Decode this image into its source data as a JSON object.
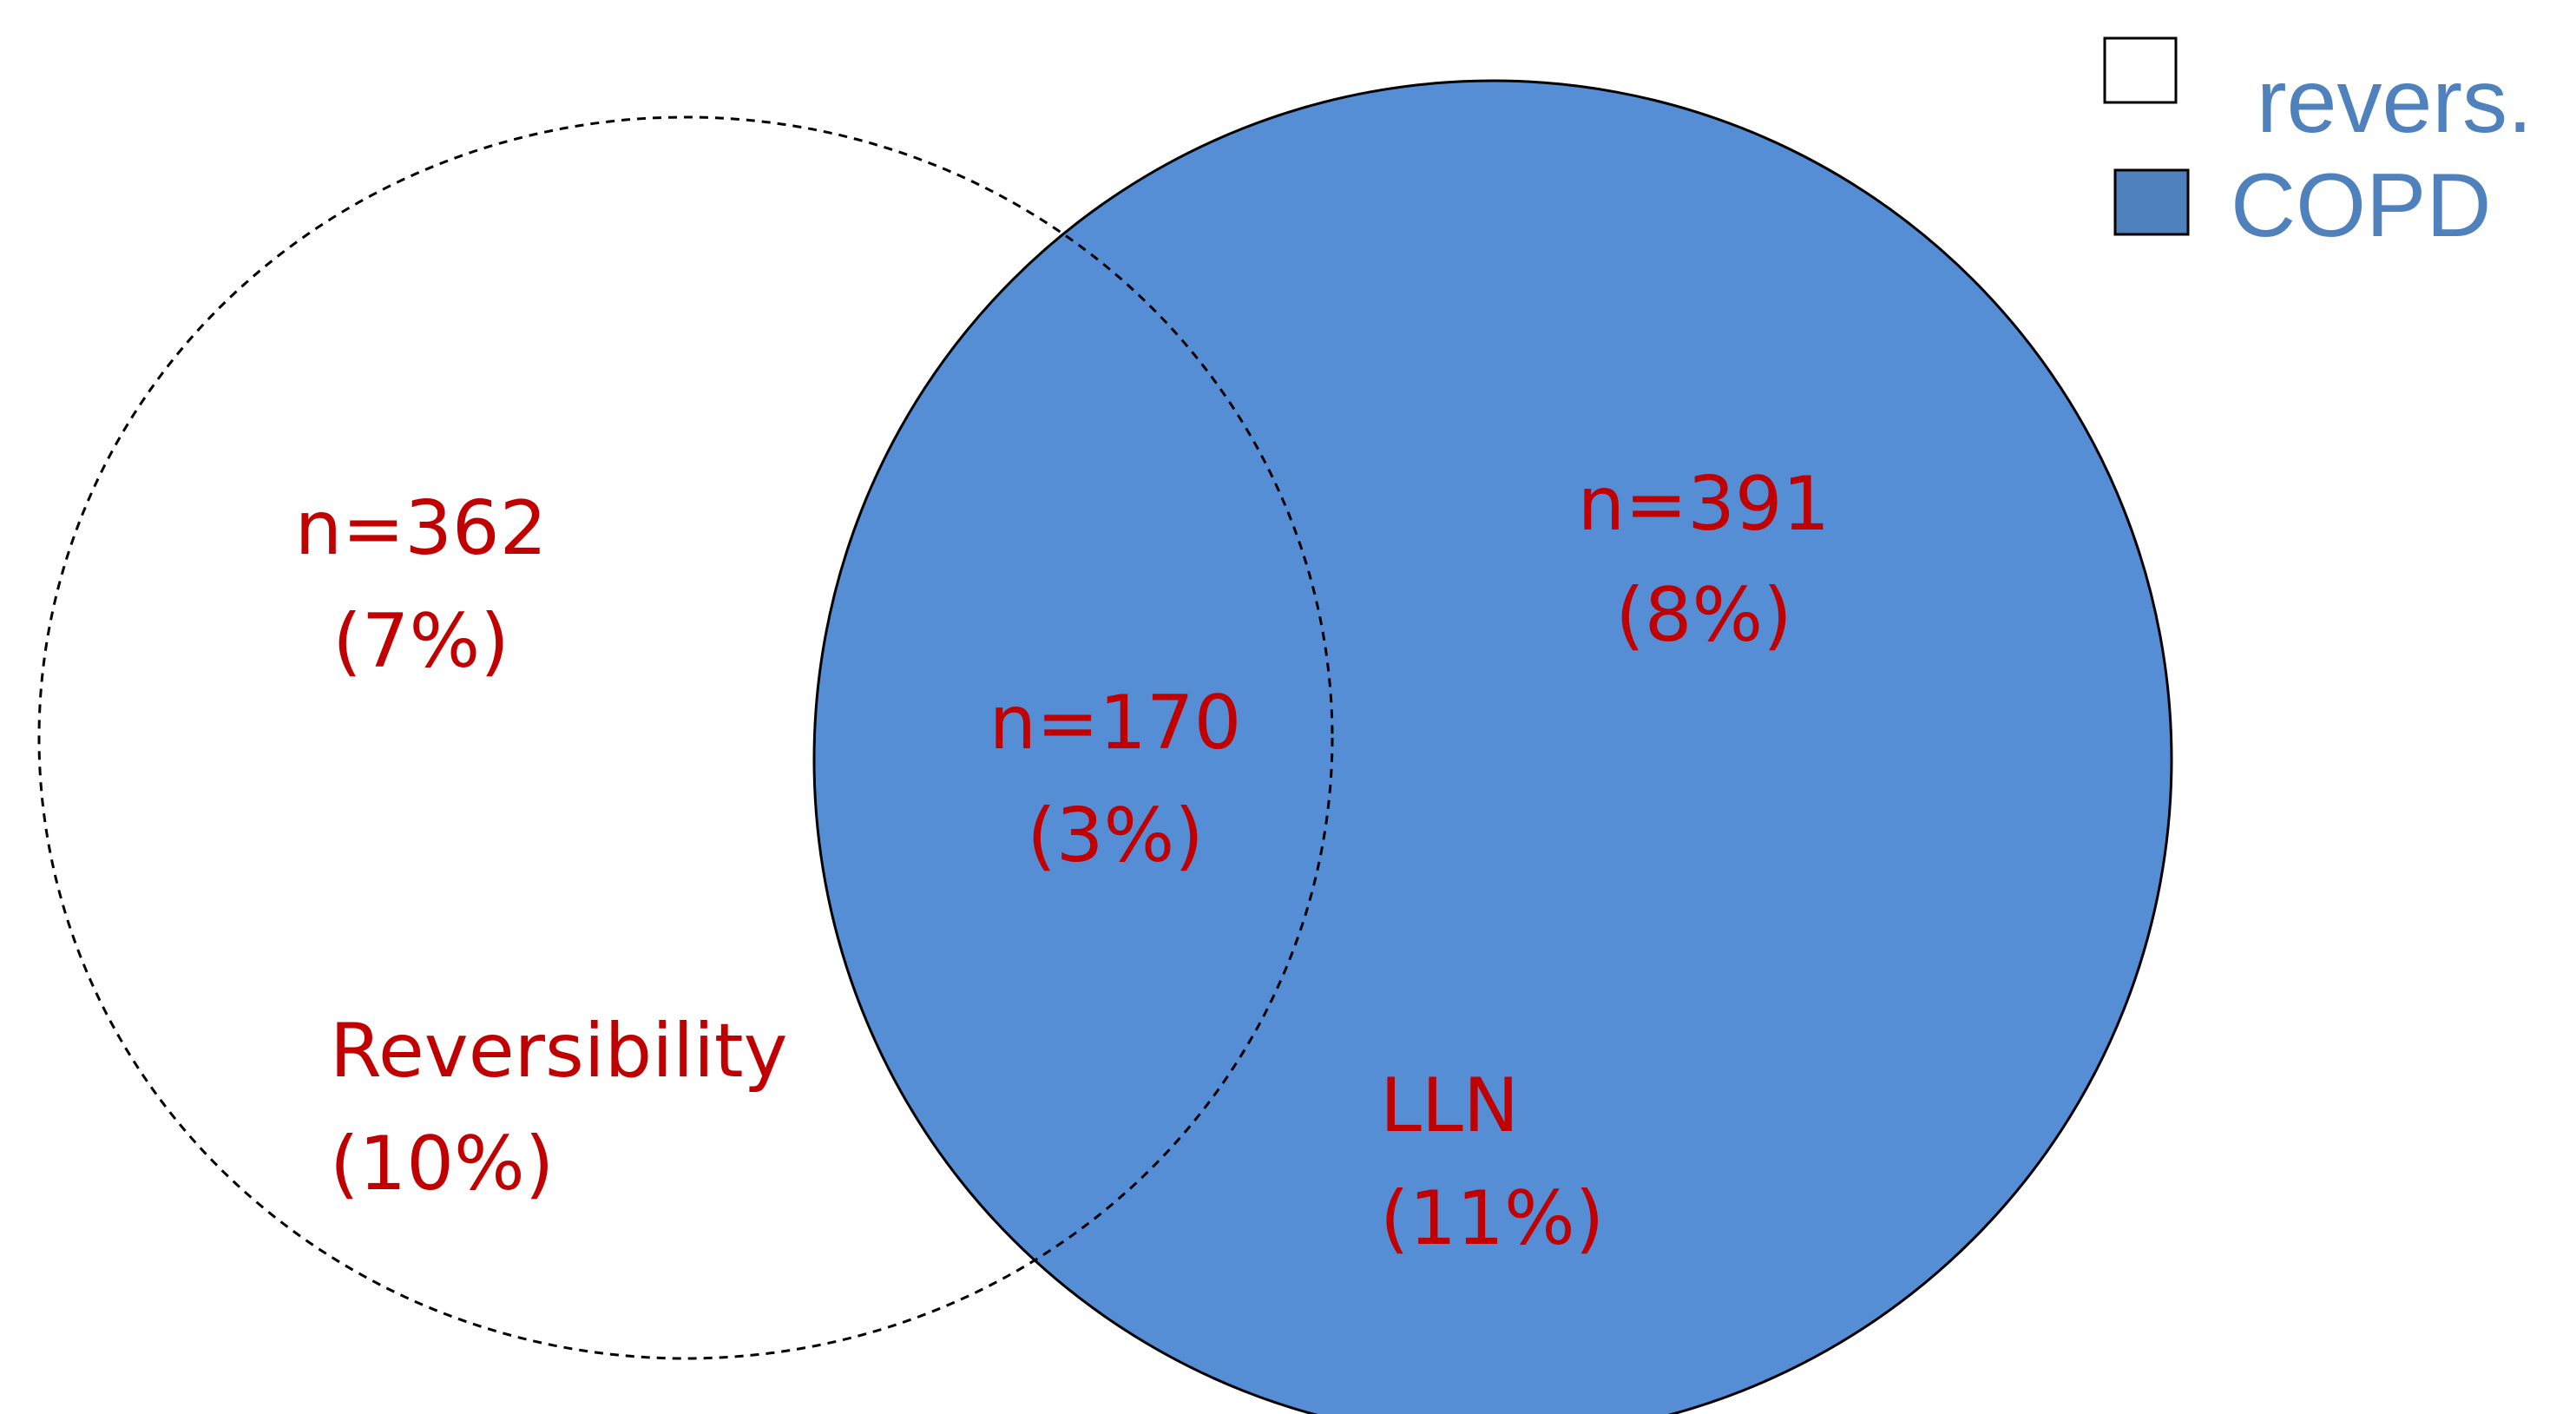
{
  "colors": {
    "copd_fill": "#558ED5",
    "text_red": "#C00000",
    "legend_text": "#4F81BD",
    "outline": "#000000",
    "background": "#FFFFFF"
  },
  "legend": {
    "items": [
      {
        "label": "revers.",
        "swatch": "#FFFFFF"
      },
      {
        "label": "COPD",
        "swatch": "#4F81BD"
      }
    ]
  },
  "sets": {
    "reversibility": {
      "name": "Reversibility",
      "pct": "(10%)"
    },
    "lln": {
      "name": "LLN",
      "pct": "(11%)"
    }
  },
  "regions": {
    "reversibility_only": {
      "n": "n=362",
      "pct": "(7%)"
    },
    "overlap": {
      "n": "n=170",
      "pct": "(3%)"
    },
    "lln_only": {
      "n": "n=391",
      "pct": "(8%)"
    }
  }
}
